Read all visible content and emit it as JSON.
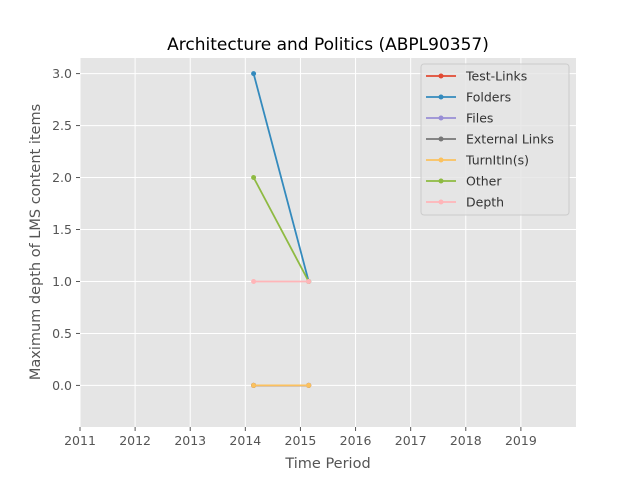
{
  "chart_data": {
    "type": "line",
    "title": "Architecture and Politics (ABPL90357)",
    "xlabel": "Time Period",
    "ylabel": "Maximum depth of LMS content items",
    "xlim": [
      2011,
      2020
    ],
    "ylim": [
      -0.4,
      3.15
    ],
    "xticks": [
      2011,
      2012,
      2013,
      2014,
      2015,
      2016,
      2017,
      2018,
      2019
    ],
    "xtick_labels": [
      "2011",
      "2012",
      "2013",
      "2014",
      "2015",
      "2016",
      "2017",
      "2018",
      "2019"
    ],
    "yticks": [
      0.0,
      0.5,
      1.0,
      1.5,
      2.0,
      2.5,
      3.0
    ],
    "ytick_labels": [
      "0.0",
      "0.5",
      "1.0",
      "1.5",
      "2.0",
      "2.5",
      "3.0"
    ],
    "grid": true,
    "legend_position": "top-right",
    "x": [
      2014.15,
      2015.15
    ],
    "series": [
      {
        "name": "Test-Links",
        "color": "#E24A33",
        "values": [
          0,
          0
        ]
      },
      {
        "name": "Folders",
        "color": "#348ABD",
        "values": [
          3,
          1
        ]
      },
      {
        "name": "Files",
        "color": "#988ED5",
        "values": [
          0,
          0
        ]
      },
      {
        "name": "External Links",
        "color": "#777777",
        "values": [
          0,
          0
        ]
      },
      {
        "name": "TurnItIn(s)",
        "color": "#FBC15E",
        "values": [
          0,
          0
        ]
      },
      {
        "name": "Other",
        "color": "#8EBA42",
        "values": [
          2,
          1
        ]
      },
      {
        "name": "Depth",
        "color": "#FFB5B8",
        "values": [
          1,
          1
        ]
      }
    ]
  }
}
